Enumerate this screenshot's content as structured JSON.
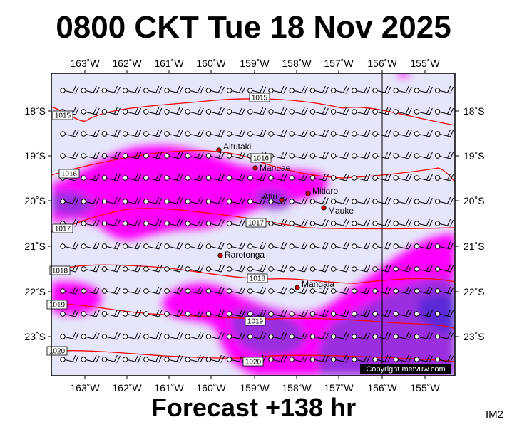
{
  "title": "0800 CKT Tue 18 Nov 2025",
  "subtitle": "Forecast +138 hr",
  "image_code": "IM2",
  "copyright": "Copyright metvuw.com",
  "lon_labels": [
    "163˚W",
    "162˚W",
    "161˚W",
    "160˚W",
    "159˚W",
    "158˚W",
    "157˚W",
    "156˚W",
    "155˚W"
  ],
  "lat_labels": [
    "18˚S",
    "19˚S",
    "20˚S",
    "21˚S",
    "22˚S",
    "23˚S"
  ],
  "places": [
    {
      "name": "Aitutaki"
    },
    {
      "name": "Manuae"
    },
    {
      "name": "Atiu"
    },
    {
      "name": "Mitiaro"
    },
    {
      "name": "Mauke"
    },
    {
      "name": "Rarotonga"
    },
    {
      "name": "Mangaia"
    }
  ],
  "isobar_labels": [
    "1015",
    "1015",
    "1016",
    "1016",
    "1017",
    "1017",
    "1018",
    "1018",
    "1019",
    "1019",
    "1020",
    "1020"
  ],
  "colors": {
    "background": "#e6e6fa",
    "rain_light": "#ff00ff",
    "rain_moderate": "#9a2ee0",
    "rain_heavy": "#5a2bd8",
    "isobar": "#ff0000",
    "barb": "#000000",
    "place_marker": "#cc0000"
  }
}
